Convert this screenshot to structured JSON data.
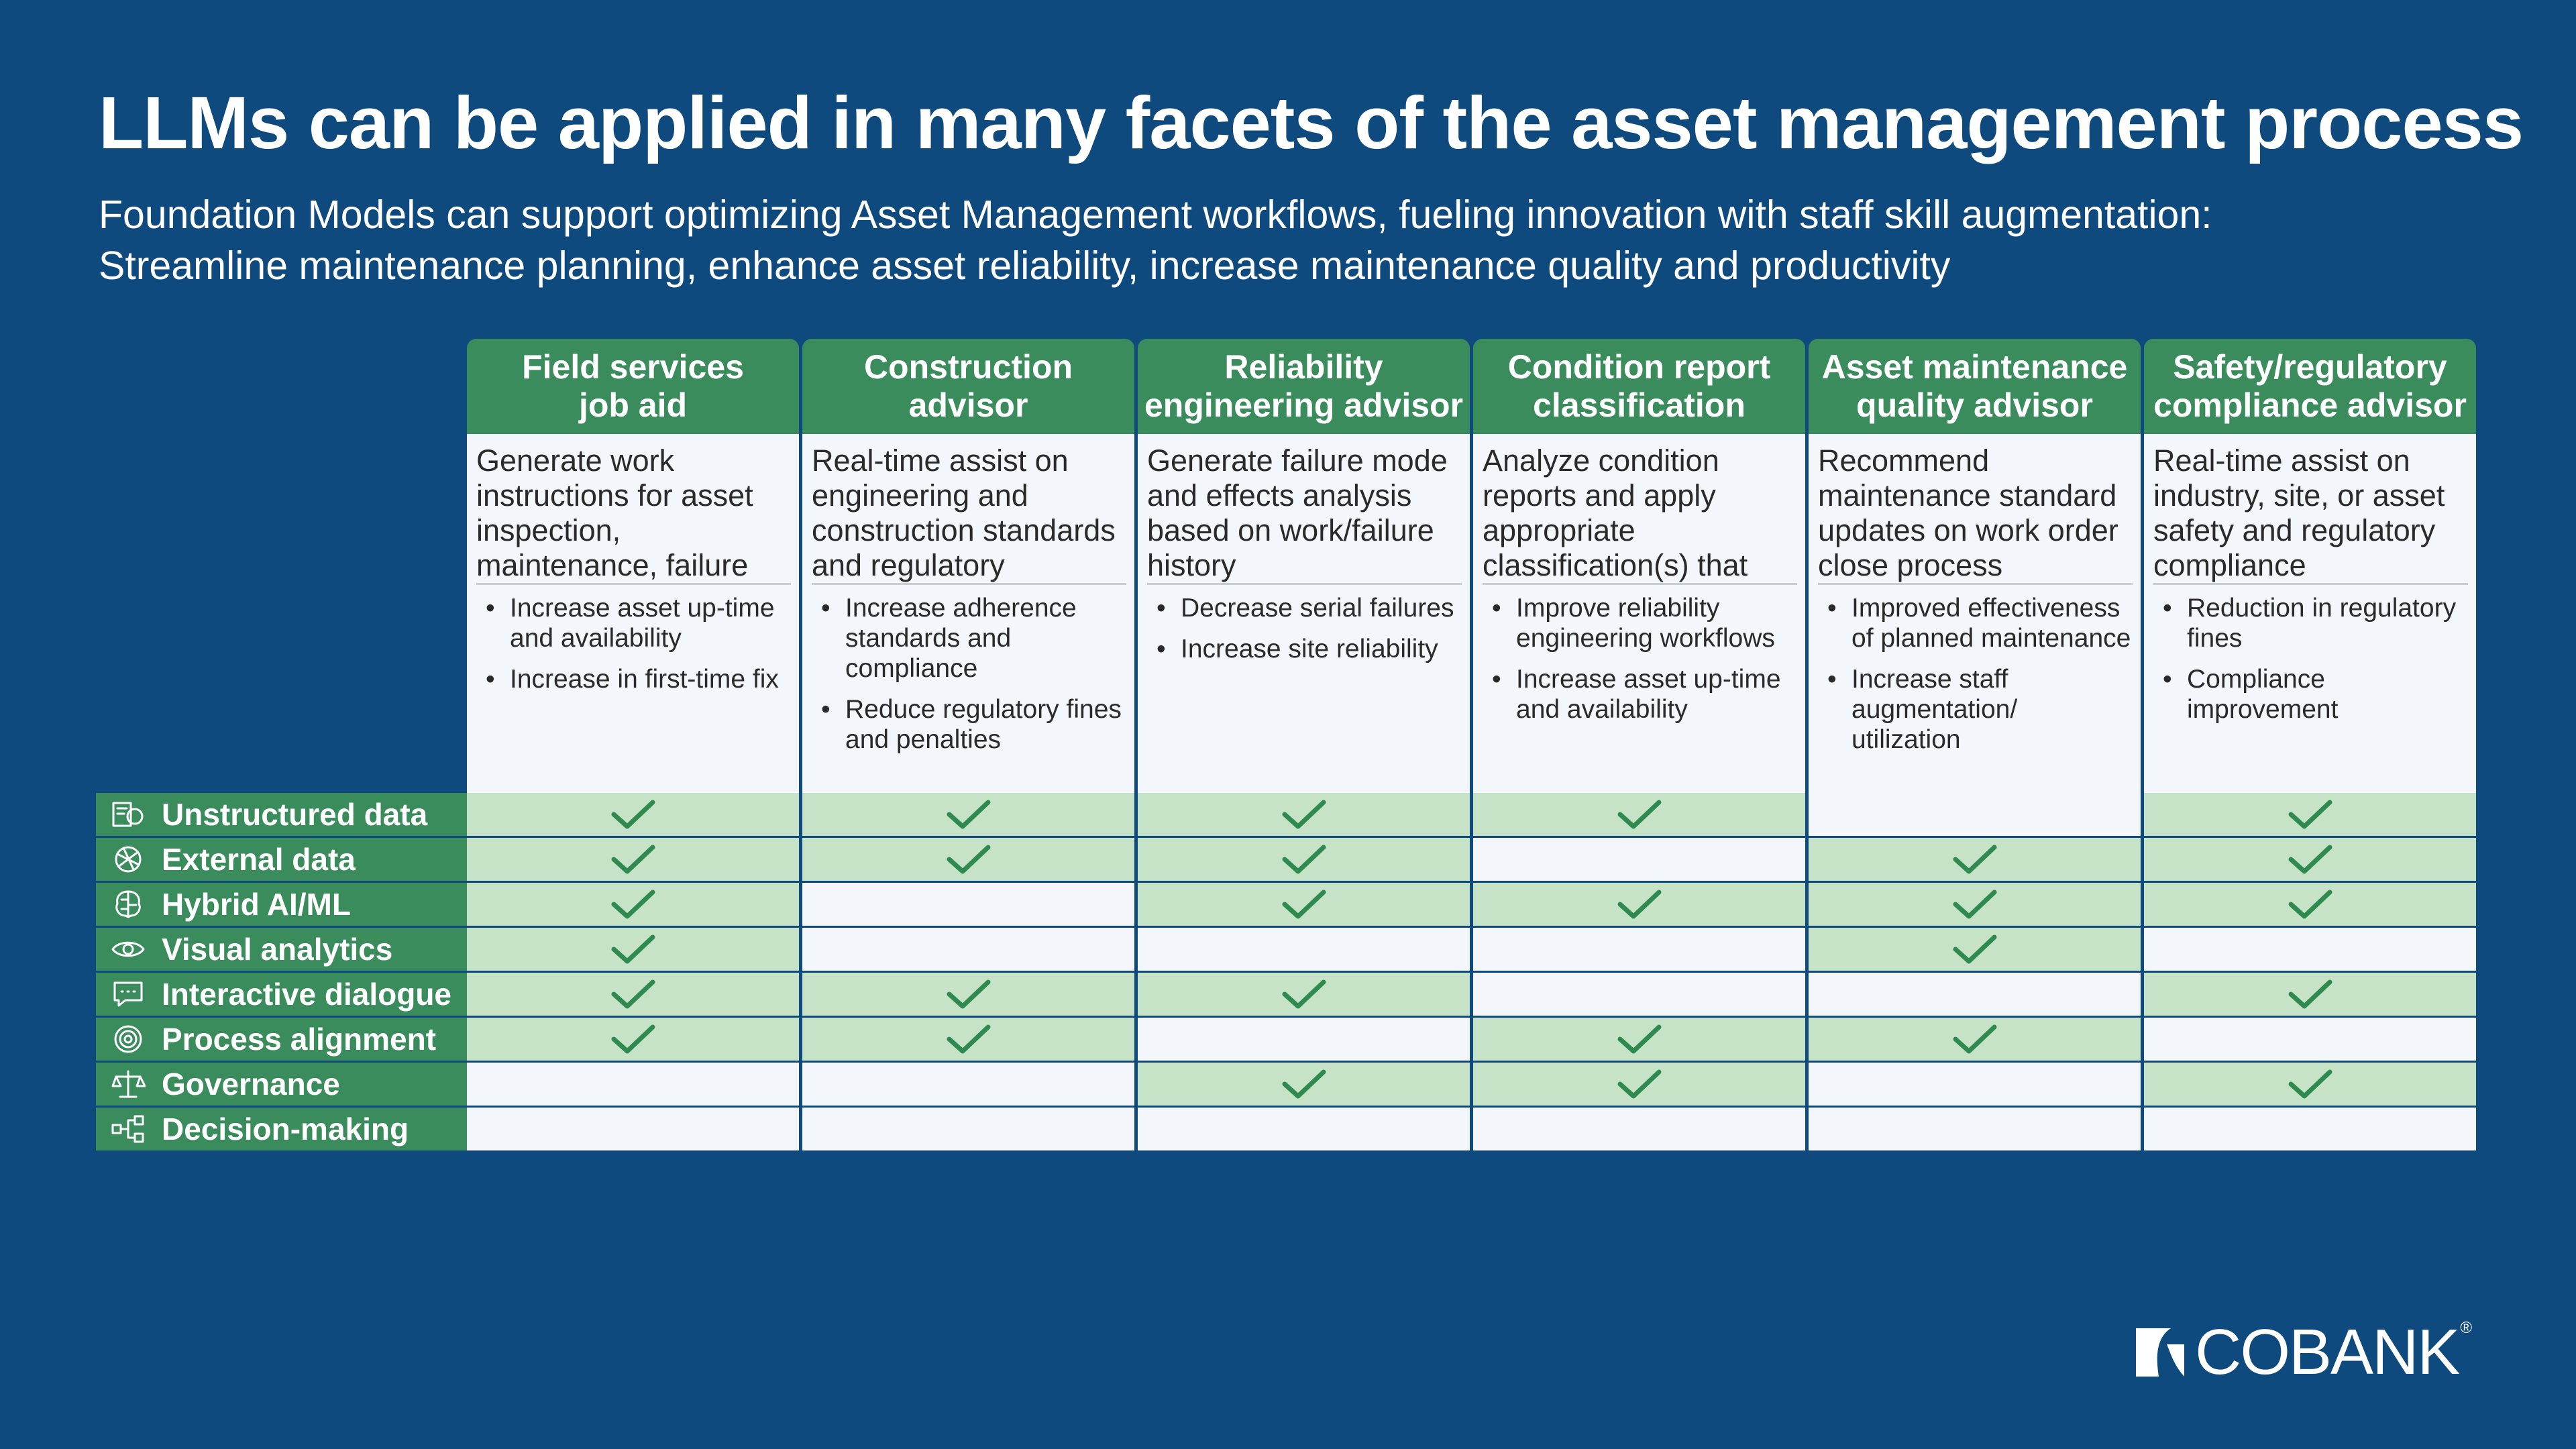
{
  "title": "LLMs can be applied in many facets of the asset management process",
  "subtitle": [
    "Foundation Models can support optimizing Asset Management workflows, fueling innovation with staff skill augmentation:",
    "Streamline maintenance planning, enhance asset reliability, increase maintenance quality and productivity"
  ],
  "columns": [
    {
      "header": [
        "Field services",
        "job aid"
      ],
      "description": "Generate work instructions for asset inspection, maintenance, failure and repairs to field technicians",
      "benefits": [
        "Increase asset up-time and availability",
        "Increase in first-time fix"
      ]
    },
    {
      "header": [
        "Construction",
        "advisor"
      ],
      "description": "Real-time assist on engineering and construction standards and regulatory compliance",
      "benefits": [
        "Increase adherence standards and compliance",
        "Reduce regulatory fines and penalties"
      ]
    },
    {
      "header": [
        "Reliability",
        "engineering advisor"
      ],
      "description": "Generate failure mode and effects analysis based on work/failure history",
      "benefits": [
        "Decrease serial failures",
        "Increase site reliability"
      ]
    },
    {
      "header": [
        "Condition report",
        "classification"
      ],
      "description": "Analyze condition reports and apply appropriate classification(s) that drive prioritization of work and assignment of job plans",
      "benefits": [
        "Improve reliability engineering workflows",
        "Increase asset up-time and availability"
      ]
    },
    {
      "header": [
        "Asset maintenance",
        "quality advisor"
      ],
      "description": "Recommend maintenance standard updates on work order close process",
      "benefits": [
        "Improved effectiveness of planned maintenance",
        "Increase staff augmentation/ utilization"
      ]
    },
    {
      "header": [
        "Safety/regulatory",
        "compliance advisor"
      ],
      "description": "Real-time assist on industry, site, or asset safety and regulatory compliance",
      "benefits": [
        "Reduction in regulatory fines",
        "Compliance improvement"
      ]
    }
  ],
  "rows": [
    {
      "label": "Unstructured data",
      "icon": "unstructured-data-icon",
      "checks": [
        true,
        true,
        true,
        true,
        false,
        true
      ]
    },
    {
      "label": "External data",
      "icon": "external-data-icon",
      "checks": [
        true,
        true,
        true,
        false,
        true,
        true
      ]
    },
    {
      "label": "Hybrid AI/ML",
      "icon": "brain-icon",
      "checks": [
        true,
        false,
        true,
        true,
        true,
        true
      ]
    },
    {
      "label": "Visual analytics",
      "icon": "eye-icon",
      "checks": [
        true,
        false,
        false,
        false,
        true,
        false
      ]
    },
    {
      "label": "Interactive dialogue",
      "icon": "chat-icon",
      "checks": [
        true,
        true,
        true,
        false,
        false,
        true
      ]
    },
    {
      "label": "Process alignment",
      "icon": "target-icon",
      "checks": [
        true,
        true,
        false,
        true,
        true,
        false
      ]
    },
    {
      "label": "Governance",
      "icon": "scales-icon",
      "checks": [
        false,
        false,
        true,
        true,
        false,
        true
      ]
    },
    {
      "label": "Decision-making",
      "icon": "flowchart-icon",
      "checks": [
        false,
        false,
        false,
        false,
        false,
        false
      ]
    }
  ],
  "colors": {
    "background": "#0f4a7e",
    "header_green": "#3a8c5d",
    "check_fill": "#c6e3c7",
    "check_mark": "#2f8a4f",
    "cell_light": "#f3f6fa"
  },
  "logo": {
    "text": "COBANK",
    "registered": "®"
  }
}
